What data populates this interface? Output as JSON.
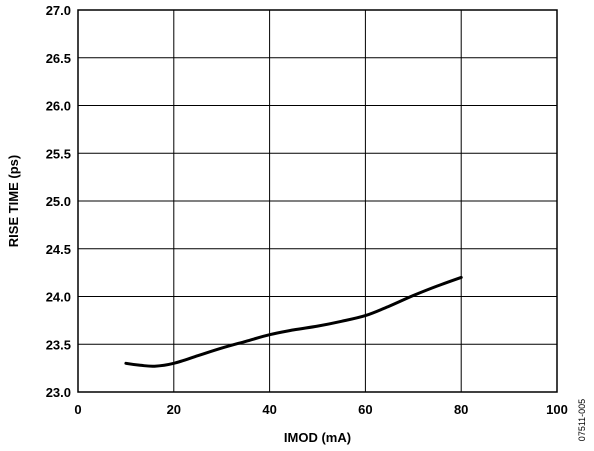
{
  "chart_data": {
    "type": "line",
    "xlabel": "IMOD (mA)",
    "ylabel": "RISE TIME (ps)",
    "xlim": [
      0,
      100
    ],
    "ylim": [
      23.0,
      27.0
    ],
    "x_ticks": [
      0,
      20,
      40,
      60,
      80,
      100
    ],
    "y_ticks": [
      23.0,
      23.5,
      24.0,
      24.5,
      25.0,
      25.5,
      26.0,
      26.5,
      27.0
    ],
    "x_tick_labels": [
      "0",
      "20",
      "40",
      "60",
      "80",
      "100"
    ],
    "y_tick_labels": [
      "23.0",
      "23.5",
      "24.0",
      "24.5",
      "25.0",
      "25.5",
      "26.0",
      "26.5",
      "27.0"
    ],
    "grid": true,
    "series": [
      {
        "x": [
          10,
          13,
          16,
          20,
          25,
          30,
          35,
          40,
          45,
          50,
          55,
          60,
          65,
          70,
          75,
          80
        ],
        "values": [
          23.3,
          23.28,
          23.27,
          23.3,
          23.38,
          23.46,
          23.53,
          23.6,
          23.65,
          23.69,
          23.74,
          23.8,
          23.9,
          24.01,
          24.11,
          24.2
        ]
      }
    ]
  },
  "figure_id": "07511-005"
}
